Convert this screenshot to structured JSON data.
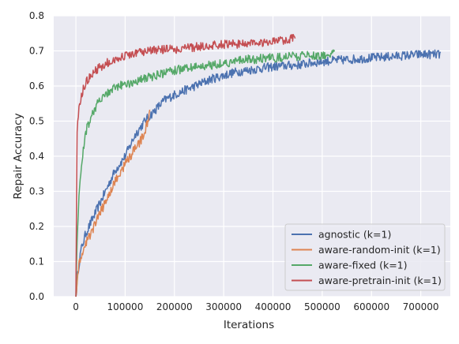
{
  "chart_data": {
    "type": "line",
    "xlabel": "Iterations",
    "ylabel": "Repair Accuracy",
    "xlim": [
      -45000,
      760000
    ],
    "ylim": [
      0.0,
      0.8
    ],
    "x_ticks": [
      0,
      100000,
      200000,
      300000,
      400000,
      500000,
      600000,
      700000
    ],
    "x_tick_labels": [
      "0",
      "100000",
      "200000",
      "300000",
      "400000",
      "500000",
      "600000",
      "700000"
    ],
    "y_ticks": [
      0.0,
      0.1,
      0.2,
      0.3,
      0.4,
      0.5,
      0.6,
      0.7,
      0.8
    ],
    "y_tick_labels": [
      "0.0",
      "0.1",
      "0.2",
      "0.3",
      "0.4",
      "0.5",
      "0.6",
      "0.7",
      "0.8"
    ],
    "grid": true,
    "legend_position": "lower-right",
    "series": [
      {
        "name": "agnostic (k=1)",
        "color": "#4c72b0",
        "x": [
          0,
          5000,
          10000,
          20000,
          30000,
          40000,
          50000,
          60000,
          70000,
          80000,
          90000,
          100000,
          120000,
          140000,
          160000,
          180000,
          200000,
          225000,
          250000,
          275000,
          300000,
          325000,
          350000,
          400000,
          450000,
          500000,
          550000,
          600000,
          650000,
          700000,
          740000
        ],
        "y": [
          0.0,
          0.08,
          0.13,
          0.18,
          0.21,
          0.24,
          0.27,
          0.3,
          0.33,
          0.36,
          0.38,
          0.4,
          0.46,
          0.5,
          0.53,
          0.56,
          0.575,
          0.59,
          0.605,
          0.62,
          0.63,
          0.64,
          0.645,
          0.655,
          0.66,
          0.67,
          0.675,
          0.68,
          0.685,
          0.69,
          0.69
        ]
      },
      {
        "name": "aware-random-init (k=1)",
        "color": "#dd8452",
        "x": [
          0,
          5000,
          10000,
          20000,
          30000,
          40000,
          50000,
          60000,
          70000,
          80000,
          90000,
          100000,
          110000,
          120000,
          130000,
          140000,
          150000
        ],
        "y": [
          0.0,
          0.08,
          0.11,
          0.15,
          0.18,
          0.21,
          0.24,
          0.27,
          0.3,
          0.33,
          0.35,
          0.38,
          0.4,
          0.42,
          0.44,
          0.47,
          0.52
        ]
      },
      {
        "name": "aware-fixed (k=1)",
        "color": "#55a868",
        "x": [
          0,
          2000,
          5000,
          10000,
          15000,
          20000,
          30000,
          40000,
          50000,
          60000,
          80000,
          100000,
          125000,
          150000,
          175000,
          200000,
          250000,
          300000,
          350000,
          400000,
          450000,
          500000,
          525000
        ],
        "y": [
          0.0,
          0.15,
          0.25,
          0.35,
          0.42,
          0.47,
          0.51,
          0.54,
          0.56,
          0.575,
          0.595,
          0.605,
          0.615,
          0.625,
          0.635,
          0.645,
          0.655,
          0.665,
          0.675,
          0.68,
          0.685,
          0.688,
          0.69
        ]
      },
      {
        "name": "aware-pretrain-init (k=1)",
        "color": "#c44e52",
        "x": [
          0,
          2000,
          5000,
          10000,
          15000,
          20000,
          30000,
          40000,
          50000,
          70000,
          100000,
          150000,
          200000,
          250000,
          300000,
          350000,
          400000,
          445000
        ],
        "y": [
          0.0,
          0.45,
          0.52,
          0.56,
          0.59,
          0.61,
          0.63,
          0.645,
          0.655,
          0.67,
          0.685,
          0.7,
          0.705,
          0.712,
          0.718,
          0.722,
          0.727,
          0.735
        ]
      }
    ]
  }
}
